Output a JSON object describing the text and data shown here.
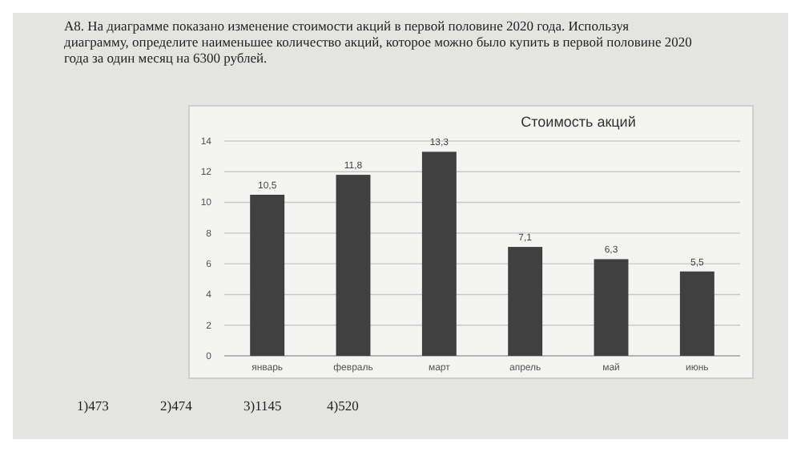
{
  "chart_data": {
    "type": "bar",
    "title": "Стоимость акций",
    "categories": [
      "январь",
      "февраль",
      "март",
      "апрель",
      "май",
      "июнь"
    ],
    "values": [
      10.5,
      11.8,
      13.3,
      7.1,
      6.3,
      5.5
    ],
    "value_labels": [
      "10,5",
      "11,8",
      "13,3",
      "7,1",
      "6,3",
      "5,5"
    ],
    "color": "#404040",
    "ylim": [
      0,
      14
    ],
    "yticks": [
      0,
      2,
      4,
      6,
      8,
      10,
      12,
      14
    ],
    "grid": "y",
    "annotations": [
      "A8. На диаграмме показано изменение стоимости акций в первой половине 2020 года. Используя диаграмму, определите наименьшее количество акций, которое можно было купить в первой половине 2020 года за один месяц на 6300 рублей.",
      "1)473",
      "2)474",
      "3)1145",
      "4)520"
    ]
  }
}
